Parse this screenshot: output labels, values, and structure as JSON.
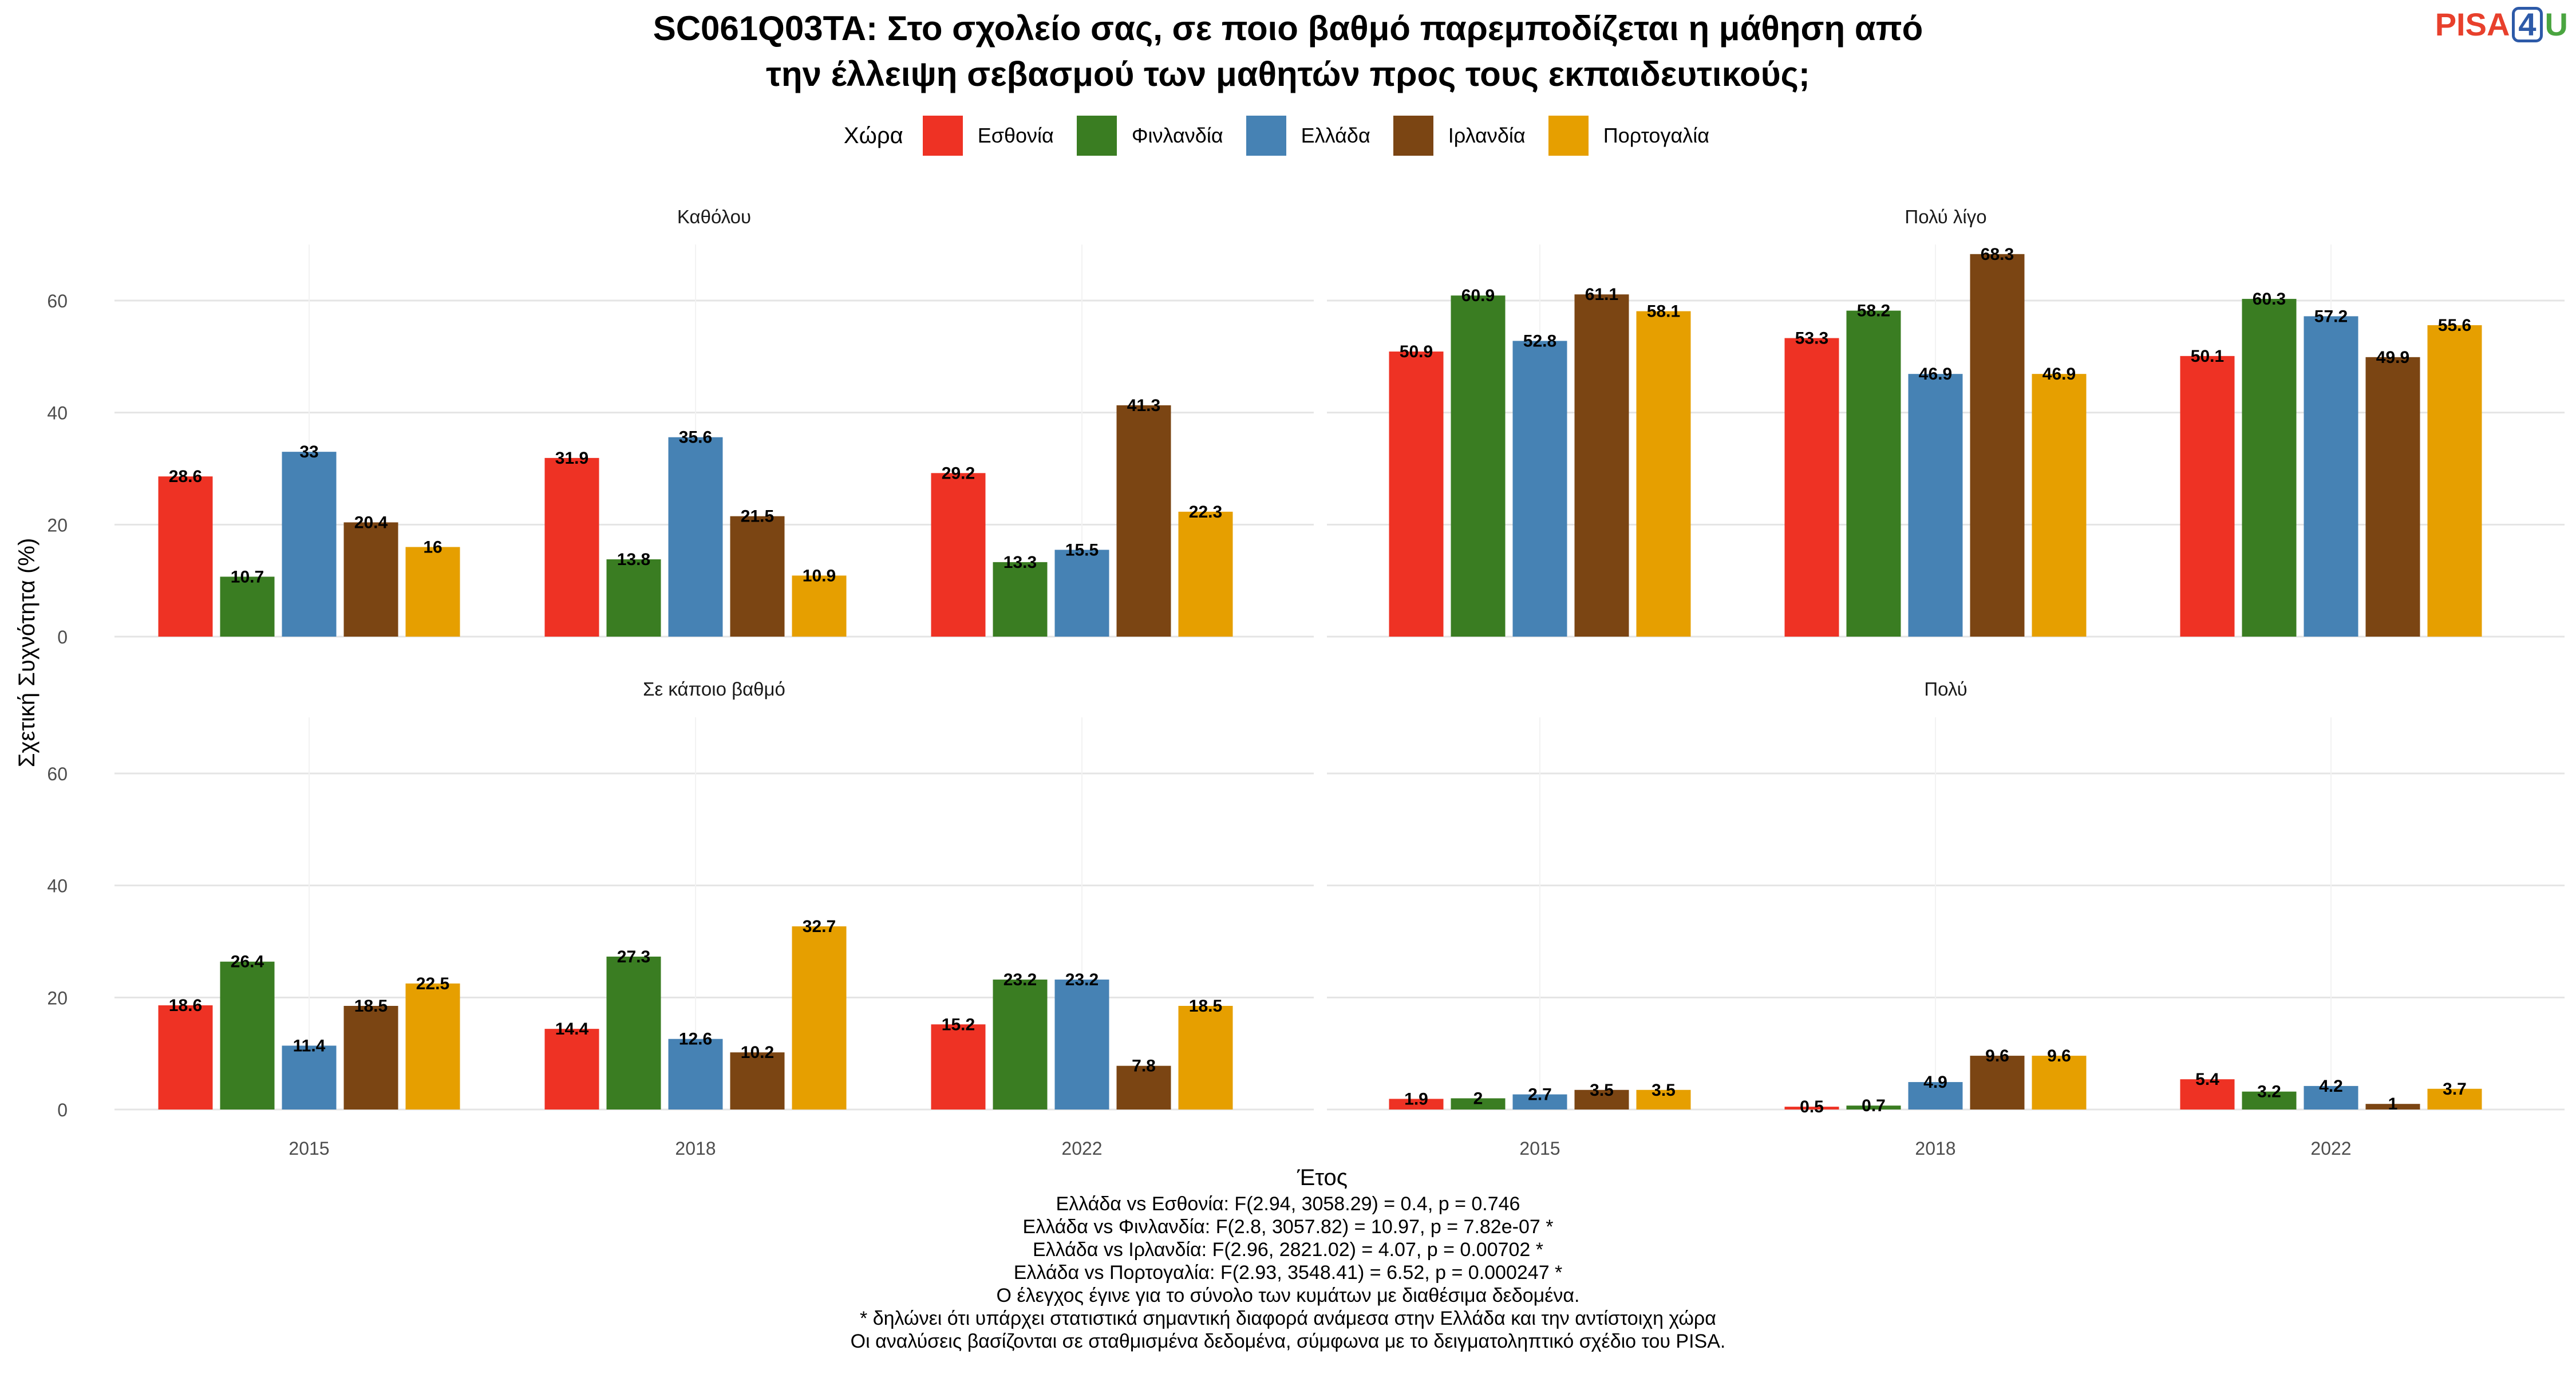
{
  "title_lines": [
    "SC061Q03TA: Στο σχολείο σας, σε ποιο βαθμό παρεμποδίζεται η μάθηση από",
    "την έλλειψη σεβασμού των μαθητών προς τους εκπαιδευτικούς;"
  ],
  "logo": {
    "left": "PISA",
    "mid": "4",
    "right": "U"
  },
  "legend": {
    "title": "Χώρα",
    "position": "top"
  },
  "caption_lines": [
    "Ελλάδα vs Εσθονία: F(2.94, 3058.29) = 0.4, p = 0.746",
    "Ελλάδα vs Φινλανδία: F(2.8, 3057.82) = 10.97, p = 7.82e-07 *",
    "Ελλάδα vs Ιρλανδία: F(2.96, 2821.02) = 4.07, p = 0.00702 *",
    "Ελλάδα vs Πορτογαλία: F(2.93, 3548.41) = 6.52, p = 0.000247 *",
    "Ο έλεγχος έγινε για το σύνολο των κυμάτων με διαθέσιμα δεδομένα.",
    "* δηλώνει ότι υπάρχει στατιστικά σημαντική διαφορά ανάμεσα στην Ελλάδα και την αντίστοιχη χώρα",
    "Οι αναλύσεις βασίζονται σε σταθμισμένα δεδομένα, σύμφωνα με το δειγματοληπτικό σχέδιο του PISA."
  ],
  "chart_data": {
    "type": "bar",
    "xlabel": "Έτος",
    "ylabel": "Σχετική Συχνότητα (%)",
    "ylim": [
      0,
      70
    ],
    "yticks": [
      "0",
      "20",
      "40",
      "60"
    ],
    "grid": true,
    "categories": [
      "2015",
      "2018",
      "2022"
    ],
    "series_info": [
      {
        "name": "Εσθονία",
        "color": "#EE3224"
      },
      {
        "name": "Φινλανδία",
        "color": "#3A7D22"
      },
      {
        "name": "Ελλάδα",
        "color": "#4682B4"
      },
      {
        "name": "Ιρλανδία",
        "color": "#7B4513"
      },
      {
        "name": "Πορτογαλία",
        "color": "#E69F00"
      }
    ],
    "panels": [
      {
        "title": "Καθόλου",
        "values": [
          [
            28.6,
            31.9,
            29.2
          ],
          [
            10.7,
            13.8,
            13.3
          ],
          [
            33,
            35.6,
            15.5
          ],
          [
            20.4,
            21.5,
            41.3
          ],
          [
            16,
            10.9,
            22.3
          ]
        ]
      },
      {
        "title": "Πολύ λίγο",
        "values": [
          [
            50.9,
            53.3,
            50.1
          ],
          [
            60.9,
            58.2,
            60.3
          ],
          [
            52.8,
            46.9,
            57.2
          ],
          [
            61.1,
            68.3,
            49.9
          ],
          [
            58.1,
            46.9,
            55.6
          ]
        ]
      },
      {
        "title": "Σε κάποιο βαθμό",
        "values": [
          [
            18.6,
            14.4,
            15.2
          ],
          [
            26.4,
            27.3,
            23.2
          ],
          [
            11.4,
            12.6,
            23.2
          ],
          [
            18.5,
            10.2,
            7.8
          ],
          [
            22.5,
            32.7,
            18.5
          ]
        ]
      },
      {
        "title": "Πολύ",
        "values": [
          [
            1.9,
            0.5,
            5.4
          ],
          [
            2,
            0.7,
            3.2
          ],
          [
            2.7,
            4.9,
            4.2
          ],
          [
            3.5,
            9.6,
            1
          ],
          [
            3.5,
            9.6,
            3.7
          ]
        ]
      }
    ]
  }
}
